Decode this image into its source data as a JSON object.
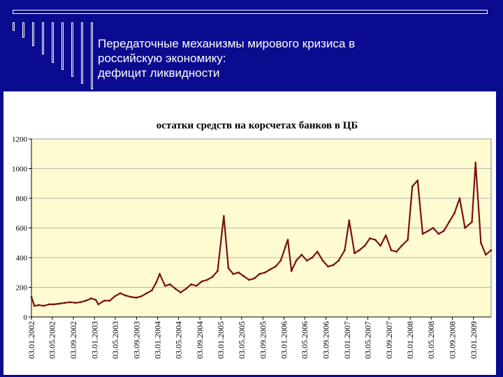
{
  "slide": {
    "title_lines": [
      "Передаточные  механизмы мирового кризиса в",
      "российскую экономику:",
      "дефицит ликвидности"
    ]
  },
  "colors": {
    "background": "#0b0b8f",
    "plot_area": "#fffbd0",
    "line": "#7a1010",
    "grid": "#a0a0a0"
  },
  "chart_data": {
    "type": "line",
    "title": "остатки средств на корсчетах банков в ЦБ",
    "xlabel": "",
    "ylabel": "",
    "ylim": [
      0,
      1200
    ],
    "yticks": [
      0,
      200,
      400,
      600,
      800,
      1000,
      1200
    ],
    "grid": true,
    "legend": "none",
    "x_tick_labels": [
      "03.01.2002",
      "03.05.2002",
      "03.09.2002",
      "03.01.2003",
      "03.05.2003",
      "03.09.2003",
      "03.01.2004",
      "03.05.2004",
      "03.09.2004",
      "03.01.2005",
      "03.05.2005",
      "03.09.2005",
      "03.01.2006",
      "03.05.2006",
      "03.09.2006",
      "03.01.2007",
      "03.05.2007",
      "03.09.2007",
      "03.01.2008",
      "03.05.2008",
      "03.09.2008",
      "03.01.2009"
    ],
    "series": [
      {
        "x": [
          "2002-01-03",
          "2002-01-20",
          "2002-02-15",
          "2002-03-15",
          "2002-04-15",
          "2002-05-15",
          "2002-06-15",
          "2002-07-15",
          "2002-08-15",
          "2002-09-15",
          "2002-10-15",
          "2002-11-15",
          "2002-12-15",
          "2003-01-10",
          "2003-01-25",
          "2003-03-01",
          "2003-04-01",
          "2003-05-01",
          "2003-06-01",
          "2003-07-01",
          "2003-08-01",
          "2003-09-01",
          "2003-10-01",
          "2003-11-01",
          "2003-12-01",
          "2003-12-25",
          "2004-01-15",
          "2004-02-15",
          "2004-03-15",
          "2004-04-15",
          "2004-05-15",
          "2004-06-15",
          "2004-07-15",
          "2004-08-15",
          "2004-09-15",
          "2004-10-15",
          "2004-11-15",
          "2004-12-15",
          "2005-01-10",
          "2005-01-20",
          "2005-02-15",
          "2005-03-15",
          "2005-04-15",
          "2005-05-15",
          "2005-06-15",
          "2005-07-15",
          "2005-08-15",
          "2005-09-15",
          "2005-10-15",
          "2005-11-15",
          "2005-12-15",
          "2006-01-10",
          "2006-01-25",
          "2006-02-15",
          "2006-03-15",
          "2006-04-15",
          "2006-05-15",
          "2006-06-15",
          "2006-07-15",
          "2006-08-15",
          "2006-09-15",
          "2006-10-15",
          "2006-11-15",
          "2006-12-20",
          "2007-01-15",
          "2007-02-15",
          "2007-03-15",
          "2007-04-15",
          "2007-05-15",
          "2007-06-15",
          "2007-07-15",
          "2007-08-15",
          "2007-09-15",
          "2007-10-15",
          "2007-11-15",
          "2007-12-20",
          "2008-01-15",
          "2008-02-15",
          "2008-03-15",
          "2008-04-15",
          "2008-05-15",
          "2008-06-15",
          "2008-07-15",
          "2008-08-15",
          "2008-09-15",
          "2008-10-15",
          "2008-11-15",
          "2008-12-25",
          "2009-01-15",
          "2009-02-15",
          "2009-03-15",
          "2009-04-15"
        ],
        "values": [
          135,
          75,
          80,
          75,
          85,
          85,
          90,
          95,
          100,
          95,
          100,
          110,
          125,
          115,
          85,
          110,
          110,
          140,
          160,
          145,
          135,
          130,
          140,
          160,
          180,
          230,
          290,
          210,
          220,
          190,
          165,
          190,
          220,
          210,
          240,
          250,
          270,
          310,
          580,
          680,
          330,
          290,
          300,
          275,
          250,
          260,
          290,
          300,
          320,
          340,
          380,
          470,
          520,
          310,
          380,
          420,
          380,
          400,
          440,
          380,
          340,
          350,
          380,
          450,
          650,
          430,
          450,
          480,
          530,
          520,
          480,
          550,
          450,
          440,
          480,
          520,
          880,
          920,
          560,
          580,
          600,
          560,
          580,
          640,
          700,
          800,
          600,
          640,
          1040,
          500,
          420,
          450
        ]
      }
    ]
  }
}
